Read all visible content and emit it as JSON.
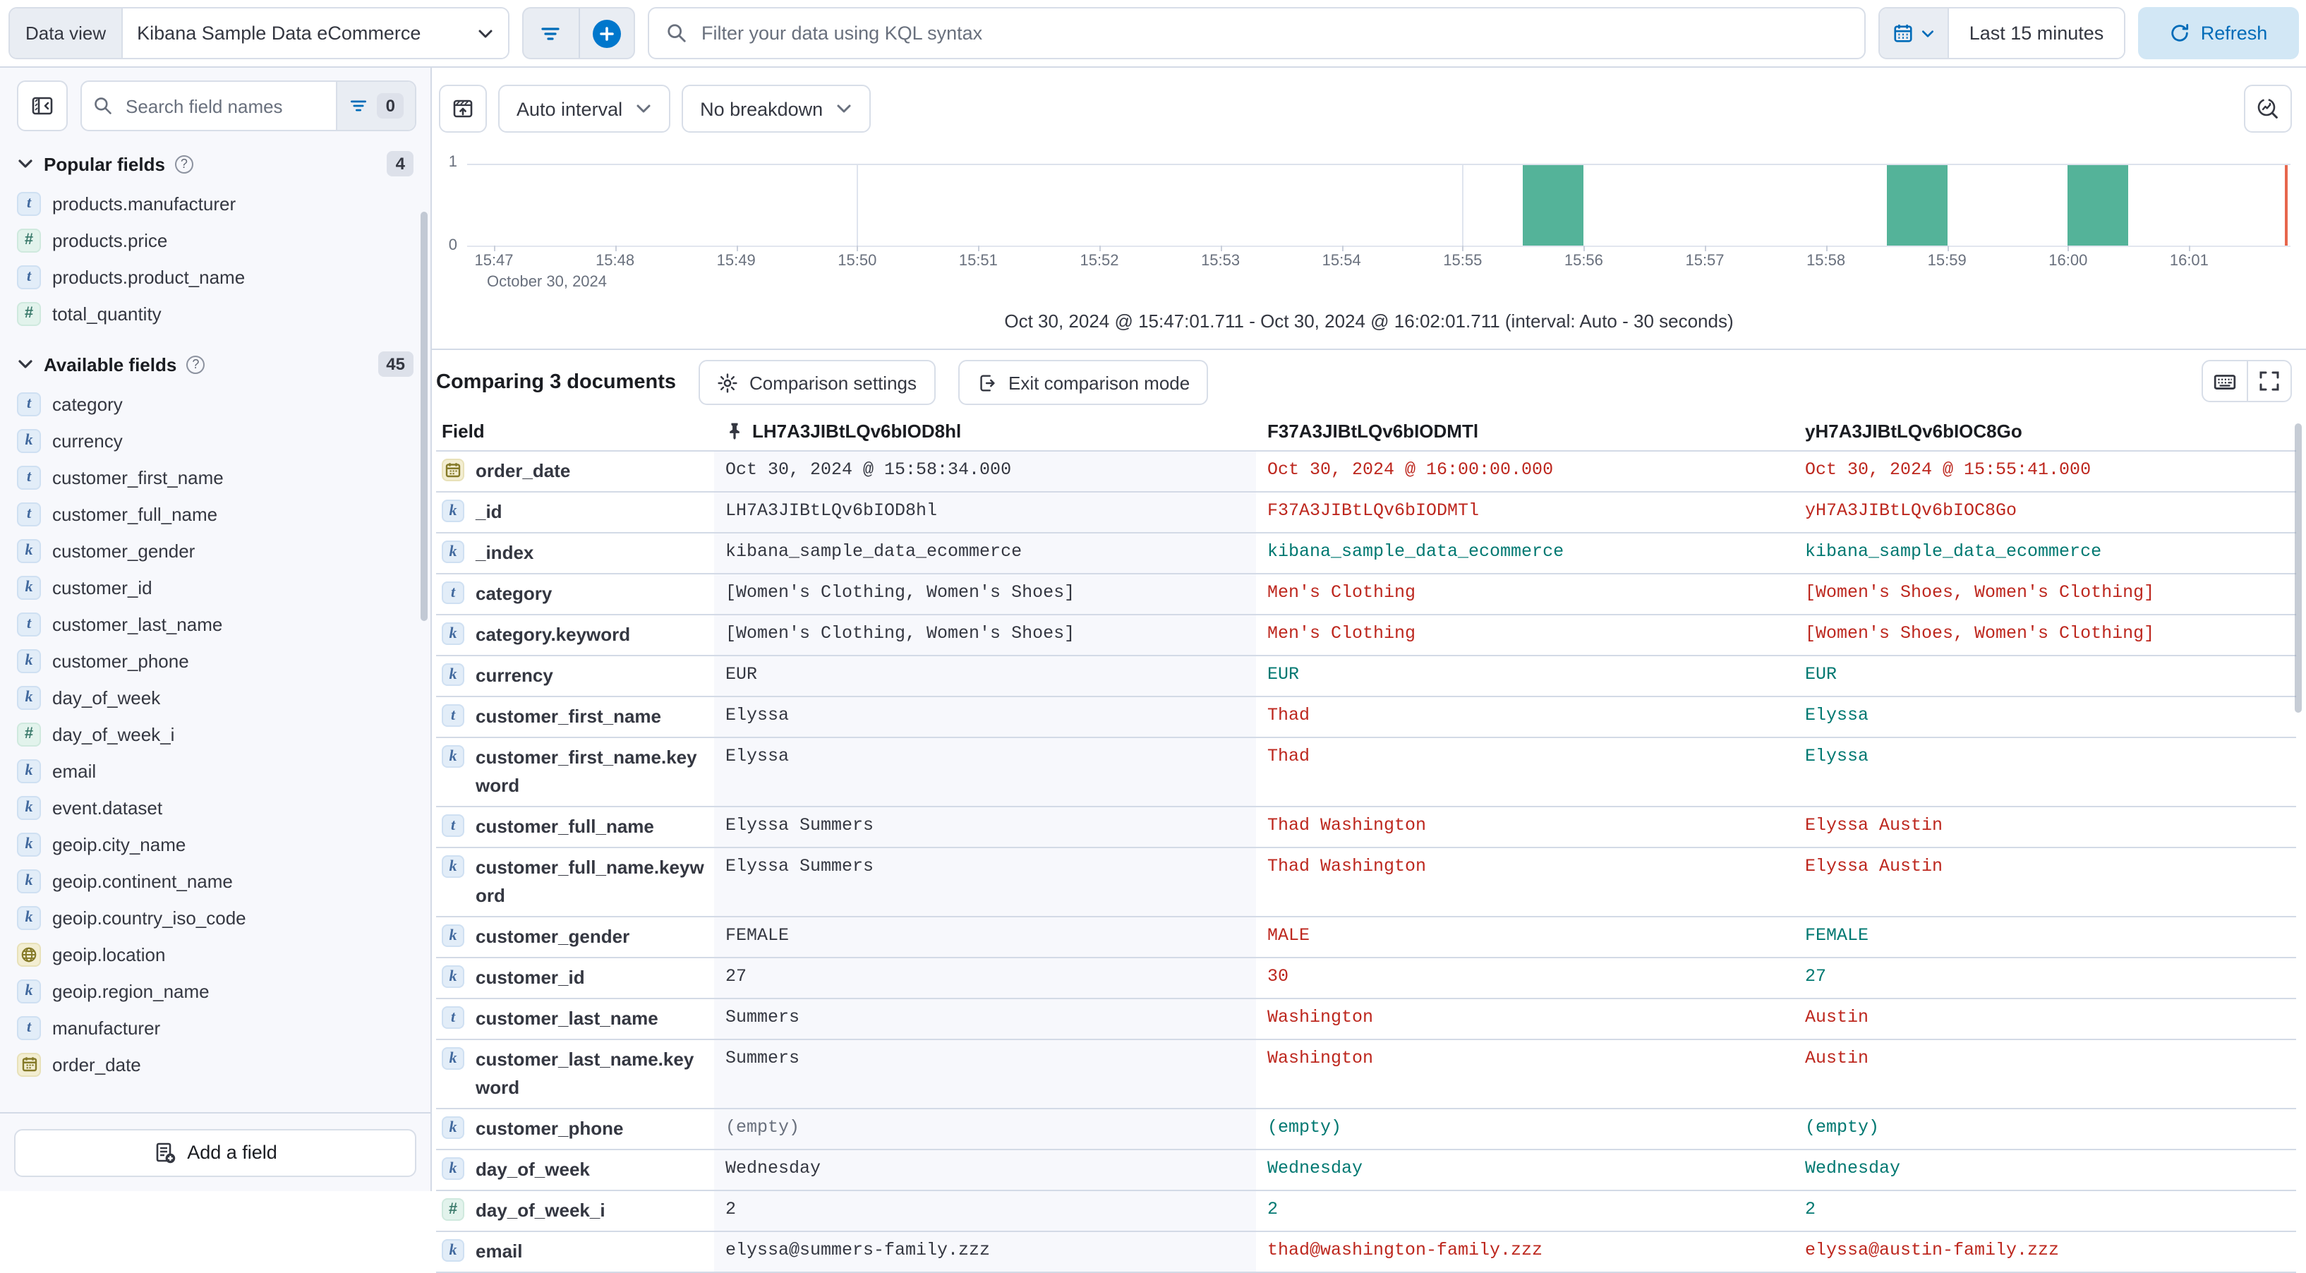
{
  "topbar": {
    "data_view_label": "Data view",
    "data_view_value": "Kibana Sample Data eCommerce",
    "kql_placeholder": "Filter your data using KQL syntax",
    "time_range": "Last 15 minutes",
    "refresh_label": "Refresh"
  },
  "sidebar": {
    "search_placeholder": "Search field names",
    "filter_count": "0",
    "add_field_label": "Add a field",
    "popular": {
      "title": "Popular fields",
      "count": "4",
      "items": [
        {
          "type": "t",
          "label": "products.manufacturer"
        },
        {
          "type": "num",
          "label": "products.price"
        },
        {
          "type": "t",
          "label": "products.product_name"
        },
        {
          "type": "num",
          "label": "total_quantity"
        }
      ]
    },
    "available": {
      "title": "Available fields",
      "count": "45",
      "items": [
        {
          "type": "t",
          "label": "category"
        },
        {
          "type": "k",
          "label": "currency"
        },
        {
          "type": "t",
          "label": "customer_first_name"
        },
        {
          "type": "t",
          "label": "customer_full_name"
        },
        {
          "type": "k",
          "label": "customer_gender"
        },
        {
          "type": "k",
          "label": "customer_id"
        },
        {
          "type": "t",
          "label": "customer_last_name"
        },
        {
          "type": "k",
          "label": "customer_phone"
        },
        {
          "type": "k",
          "label": "day_of_week"
        },
        {
          "type": "num",
          "label": "day_of_week_i"
        },
        {
          "type": "k",
          "label": "email"
        },
        {
          "type": "k",
          "label": "event.dataset"
        },
        {
          "type": "k",
          "label": "geoip.city_name"
        },
        {
          "type": "k",
          "label": "geoip.continent_name"
        },
        {
          "type": "k",
          "label": "geoip.country_iso_code"
        },
        {
          "type": "geo",
          "label": "geoip.location"
        },
        {
          "type": "k",
          "label": "geoip.region_name"
        },
        {
          "type": "t",
          "label": "manufacturer"
        },
        {
          "type": "date",
          "label": "order_date"
        }
      ]
    }
  },
  "chart": {
    "interval_label": "Auto interval",
    "breakdown_label": "No breakdown",
    "caption": "Oct 30, 2024 @ 15:47:01.711 - Oct 30, 2024 @ 16:02:01.711 (interval: Auto - 30 seconds)"
  },
  "chart_data": {
    "type": "bar",
    "x_ticks": [
      "15:47",
      "15:48",
      "15:49",
      "15:50",
      "15:51",
      "15:52",
      "15:53",
      "15:54",
      "15:55",
      "15:56",
      "15:57",
      "15:58",
      "15:59",
      "16:00",
      "16:01"
    ],
    "x_context_label": "October 30, 2024",
    "y_ticks": [
      0,
      1
    ],
    "ylim": [
      0,
      1
    ],
    "interval": "Auto - 30 seconds",
    "bars": [
      {
        "time": "15:55:30",
        "count": 1
      },
      {
        "time": "15:58:30",
        "count": 1
      },
      {
        "time": "16:00:00",
        "count": 1
      }
    ],
    "bar_color": "#54b399",
    "time_marker_color": "#e7664c",
    "gridline_times": [
      "15:50",
      "15:55",
      "16:00"
    ]
  },
  "comparison": {
    "title": "Comparing 3 documents",
    "settings_label": "Comparison settings",
    "exit_label": "Exit comparison mode"
  },
  "table": {
    "field_header": "Field",
    "columns": [
      "LH7A3JIBtLQv6bIOD8hl",
      "F37A3JIBtLQv6bIODMTl",
      "yH7A3JIBtLQv6bIOC8Go"
    ],
    "rows": [
      {
        "field": "order_date",
        "type": "date",
        "cells": [
          {
            "text": "Oct 30, 2024 @ 15:58:34.000",
            "state": "base"
          },
          {
            "text": "Oct 30, 2024 @ 16:00:00.000",
            "state": "diff"
          },
          {
            "text": "Oct 30, 2024 @ 15:55:41.000",
            "state": "diff"
          }
        ]
      },
      {
        "field": "_id",
        "type": "k",
        "cells": [
          {
            "text": "LH7A3JIBtLQv6bIOD8hl",
            "state": "base"
          },
          {
            "text": "F37A3JIBtLQv6bIODMTl",
            "state": "diff"
          },
          {
            "text": "yH7A3JIBtLQv6bIOC8Go",
            "state": "diff"
          }
        ]
      },
      {
        "field": "_index",
        "type": "k",
        "cells": [
          {
            "text": "kibana_sample_data_ecommerce",
            "state": "base"
          },
          {
            "text": "kibana_sample_data_ecommerce",
            "state": "same"
          },
          {
            "text": "kibana_sample_data_ecommerce",
            "state": "same"
          }
        ]
      },
      {
        "field": "category",
        "type": "t",
        "cells": [
          {
            "text": "[Women's Clothing, Women's Shoes]",
            "state": "base"
          },
          {
            "text": "Men's Clothing",
            "state": "diff"
          },
          {
            "text": "[Women's Shoes, Women's Clothing]",
            "state": "diff"
          }
        ]
      },
      {
        "field": "category.keyword",
        "type": "k",
        "cells": [
          {
            "text": "[Women's Clothing, Women's Shoes]",
            "state": "base"
          },
          {
            "text": "Men's Clothing",
            "state": "diff"
          },
          {
            "text": "[Women's Shoes, Women's Clothing]",
            "state": "diff"
          }
        ]
      },
      {
        "field": "currency",
        "type": "k",
        "cells": [
          {
            "text": "EUR",
            "state": "base"
          },
          {
            "text": "EUR",
            "state": "same"
          },
          {
            "text": "EUR",
            "state": "same"
          }
        ]
      },
      {
        "field": "customer_first_name",
        "type": "t",
        "cells": [
          {
            "text": "Elyssa",
            "state": "base"
          },
          {
            "text": "Thad",
            "state": "diff"
          },
          {
            "text": "Elyssa",
            "state": "same"
          }
        ]
      },
      {
        "field": "customer_first_name.keyword",
        "type": "k",
        "cells": [
          {
            "text": "Elyssa",
            "state": "base"
          },
          {
            "text": "Thad",
            "state": "diff"
          },
          {
            "text": "Elyssa",
            "state": "same"
          }
        ]
      },
      {
        "field": "customer_full_name",
        "type": "t",
        "cells": [
          {
            "text": "Elyssa Summers",
            "state": "base"
          },
          {
            "text": "Thad Washington",
            "state": "diff"
          },
          {
            "text": "Elyssa Austin",
            "state": "diff"
          }
        ]
      },
      {
        "field": "customer_full_name.keyword",
        "type": "k",
        "cells": [
          {
            "text": "Elyssa Summers",
            "state": "base"
          },
          {
            "text": "Thad Washington",
            "state": "diff"
          },
          {
            "text": "Elyssa Austin",
            "state": "diff"
          }
        ]
      },
      {
        "field": "customer_gender",
        "type": "k",
        "cells": [
          {
            "text": "FEMALE",
            "state": "base"
          },
          {
            "text": "MALE",
            "state": "diff"
          },
          {
            "text": "FEMALE",
            "state": "same"
          }
        ]
      },
      {
        "field": "customer_id",
        "type": "k",
        "cells": [
          {
            "text": "27",
            "state": "base"
          },
          {
            "text": "30",
            "state": "diff"
          },
          {
            "text": "27",
            "state": "same"
          }
        ]
      },
      {
        "field": "customer_last_name",
        "type": "t",
        "cells": [
          {
            "text": "Summers",
            "state": "base"
          },
          {
            "text": "Washington",
            "state": "diff"
          },
          {
            "text": "Austin",
            "state": "diff"
          }
        ]
      },
      {
        "field": "customer_last_name.keyword",
        "type": "k",
        "cells": [
          {
            "text": "Summers",
            "state": "base"
          },
          {
            "text": "Washington",
            "state": "diff"
          },
          {
            "text": "Austin",
            "state": "diff"
          }
        ]
      },
      {
        "field": "customer_phone",
        "type": "k",
        "cells": [
          {
            "text": "(empty)",
            "state": "base-empty"
          },
          {
            "text": "(empty)",
            "state": "same"
          },
          {
            "text": "(empty)",
            "state": "same"
          }
        ]
      },
      {
        "field": "day_of_week",
        "type": "k",
        "cells": [
          {
            "text": "Wednesday",
            "state": "base"
          },
          {
            "text": "Wednesday",
            "state": "same"
          },
          {
            "text": "Wednesday",
            "state": "same"
          }
        ]
      },
      {
        "field": "day_of_week_i",
        "type": "num",
        "cells": [
          {
            "text": "2",
            "state": "base"
          },
          {
            "text": "2",
            "state": "same"
          },
          {
            "text": "2",
            "state": "same"
          }
        ]
      },
      {
        "field": "email",
        "type": "k",
        "cells": [
          {
            "text": "elyssa@summers-family.zzz",
            "state": "base"
          },
          {
            "text": "thad@washington-family.zzz",
            "state": "diff"
          },
          {
            "text": "elyssa@austin-family.zzz",
            "state": "diff"
          }
        ]
      }
    ]
  },
  "colors": {
    "accent": "#0077cc",
    "danger_text": "#bd271e",
    "success_text": "#007871",
    "bar": "#54b399",
    "time_marker": "#e7664c"
  }
}
